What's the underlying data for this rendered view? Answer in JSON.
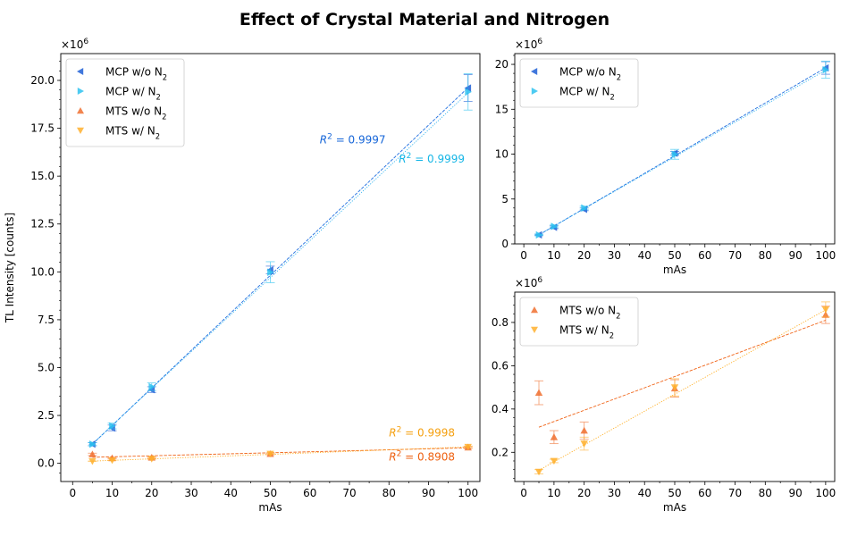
{
  "figure": {
    "title": "Effect of Crystal Material and Nitrogen",
    "colors": {
      "mcp_wo": "#1f5fd6",
      "mcp_w": "#2ec2f0",
      "mts_wo": "#f07030",
      "mts_w": "#ffb02e",
      "fit_mcp_wo": "#1f6fe0",
      "fit_mcp_w": "#35b5ef",
      "fit_mts_wo": "#f06418",
      "fit_mts_w": "#ffad1f",
      "r2_mcp_wo": "#1565d8",
      "r2_mcp_w": "#16b6e6",
      "r2_mts_wo": "#ee6010",
      "r2_mts_w": "#f5a010"
    }
  },
  "chart_data": [
    {
      "type": "scatter",
      "id": "main",
      "title": "",
      "xlabel": "mAs",
      "ylabel": "TL Intensity [counts]",
      "y_multiplier": "×10⁶",
      "xlim": [
        -3,
        103
      ],
      "ylim": [
        -0.95,
        21.4
      ],
      "xticks": [
        0,
        10,
        20,
        30,
        40,
        50,
        60,
        70,
        80,
        90,
        100
      ],
      "yticks": [
        0.0,
        2.5,
        5.0,
        7.5,
        10.0,
        12.5,
        15.0,
        17.5,
        20.0
      ],
      "ytick_labels": [
        "0.0",
        "2.5",
        "5.0",
        "7.5",
        "10.0",
        "12.5",
        "15.0",
        "17.5",
        "20.0"
      ],
      "legend_loc": "top-left",
      "series": [
        {
          "name": "MCP w/o N₂",
          "key": "mcp_wo",
          "marker": "triangle-left",
          "x": [
            5,
            10,
            20,
            50,
            100
          ],
          "y": [
            1.0,
            1.85,
            3.85,
            10.1,
            19.6
          ],
          "err": [
            0.08,
            0.15,
            0.15,
            0.2,
            0.7
          ],
          "fit": [
            0.02,
            0.196
          ],
          "fit_style": "dashed",
          "r2": "0.9997"
        },
        {
          "name": "MCP w/ N₂",
          "key": "mcp_w",
          "marker": "triangle-right",
          "x": [
            5,
            10,
            20,
            50,
            100
          ],
          "y": [
            1.0,
            1.95,
            4.0,
            9.98,
            19.4
          ],
          "err": [
            0.08,
            0.15,
            0.2,
            0.55,
            0.95
          ],
          "fit": [
            0.05,
            0.193
          ],
          "fit_style": "dotted",
          "r2": "0.9999"
        },
        {
          "name": "MTS w/o N₂",
          "key": "mts_wo",
          "marker": "triangle-up",
          "x": [
            5,
            10,
            20,
            50,
            100
          ],
          "y": [
            0.47,
            0.27,
            0.3,
            0.49,
            0.83
          ],
          "err": [
            0.06,
            0.03,
            0.04,
            0.04,
            0.05
          ],
          "fit": [
            0.29,
            0.0052
          ],
          "fit_style": "dashed",
          "r2": "0.8908"
        },
        {
          "name": "MTS w/ N₂",
          "key": "mts_w",
          "marker": "triangle-down",
          "x": [
            5,
            10,
            20,
            50,
            100
          ],
          "y": [
            0.11,
            0.16,
            0.24,
            0.5,
            0.86
          ],
          "err": [
            0.01,
            0.01,
            0.03,
            0.04,
            0.04
          ],
          "fit": [
            0.078,
            0.0078
          ],
          "fit_style": "dotted",
          "r2": "0.9998"
        }
      ],
      "annotations": [
        {
          "key": "mcp_wo",
          "text": "R² = 0.9997",
          "x": 62.5,
          "y": 16.7,
          "color_key": "r2_mcp_wo"
        },
        {
          "key": "mcp_w",
          "text": "R² = 0.9999",
          "x": 82.5,
          "y": 15.7,
          "color_key": "r2_mcp_w"
        },
        {
          "key": "mts_w",
          "text": "R² = 0.9998",
          "x": 80,
          "y": 1.4,
          "color_key": "r2_mts_w"
        },
        {
          "key": "mts_wo",
          "text": "R² = 0.8908",
          "x": 80,
          "y": 0.15,
          "color_key": "r2_mts_wo"
        }
      ]
    },
    {
      "type": "scatter",
      "id": "mcp",
      "title": "",
      "xlabel": "mAs",
      "ylabel": "",
      "y_multiplier": "×10⁶",
      "xlim": [
        -3,
        103
      ],
      "ylim": [
        0,
        21.2
      ],
      "xticks": [
        0,
        10,
        20,
        30,
        40,
        50,
        60,
        70,
        80,
        90,
        100
      ],
      "yticks": [
        0,
        5,
        10,
        15,
        20
      ],
      "ytick_labels": [
        "0",
        "5",
        "10",
        "15",
        "20"
      ],
      "legend_loc": "top-left",
      "series": [
        {
          "name": "MCP w/o N₂",
          "key": "mcp_wo",
          "marker": "triangle-left",
          "x": [
            5,
            10,
            20,
            50,
            100
          ],
          "y": [
            1.0,
            1.85,
            3.85,
            10.1,
            19.6
          ],
          "err": [
            0.08,
            0.15,
            0.15,
            0.2,
            0.7
          ],
          "fit": [
            0.02,
            0.196
          ],
          "fit_style": "dashed"
        },
        {
          "name": "MCP w/ N₂",
          "key": "mcp_w",
          "marker": "triangle-right",
          "x": [
            5,
            10,
            20,
            50,
            100
          ],
          "y": [
            1.0,
            1.95,
            4.0,
            9.98,
            19.4
          ],
          "err": [
            0.08,
            0.15,
            0.2,
            0.55,
            0.95
          ],
          "fit": [
            0.05,
            0.193
          ],
          "fit_style": "dotted"
        }
      ]
    },
    {
      "type": "scatter",
      "id": "mts",
      "title": "",
      "xlabel": "mAs",
      "ylabel": "",
      "y_multiplier": "×10⁶",
      "xlim": [
        -3,
        103
      ],
      "ylim": [
        0.065,
        0.94
      ],
      "xticks": [
        0,
        10,
        20,
        30,
        40,
        50,
        60,
        70,
        80,
        90,
        100
      ],
      "yticks": [
        0.2,
        0.4,
        0.6,
        0.8
      ],
      "ytick_labels": [
        "0.2",
        "0.4",
        "0.6",
        "0.8"
      ],
      "legend_loc": "top-left",
      "series": [
        {
          "name": "MTS w/o N₂",
          "key": "mts_wo",
          "marker": "triangle-up",
          "x": [
            5,
            10,
            20,
            50,
            100
          ],
          "y": [
            0.475,
            0.27,
            0.3,
            0.495,
            0.835
          ],
          "err": [
            0.055,
            0.03,
            0.04,
            0.04,
            0.04
          ],
          "fit": [
            0.29,
            0.0052
          ],
          "fit_style": "dashed"
        },
        {
          "name": "MTS w/ N₂",
          "key": "mts_w",
          "marker": "triangle-down",
          "x": [
            5,
            10,
            20,
            50,
            100
          ],
          "y": [
            0.11,
            0.16,
            0.24,
            0.5,
            0.86
          ],
          "err": [
            0.01,
            0.008,
            0.03,
            0.04,
            0.035
          ],
          "fit": [
            0.078,
            0.0078
          ],
          "fit_style": "dotted"
        }
      ]
    }
  ]
}
